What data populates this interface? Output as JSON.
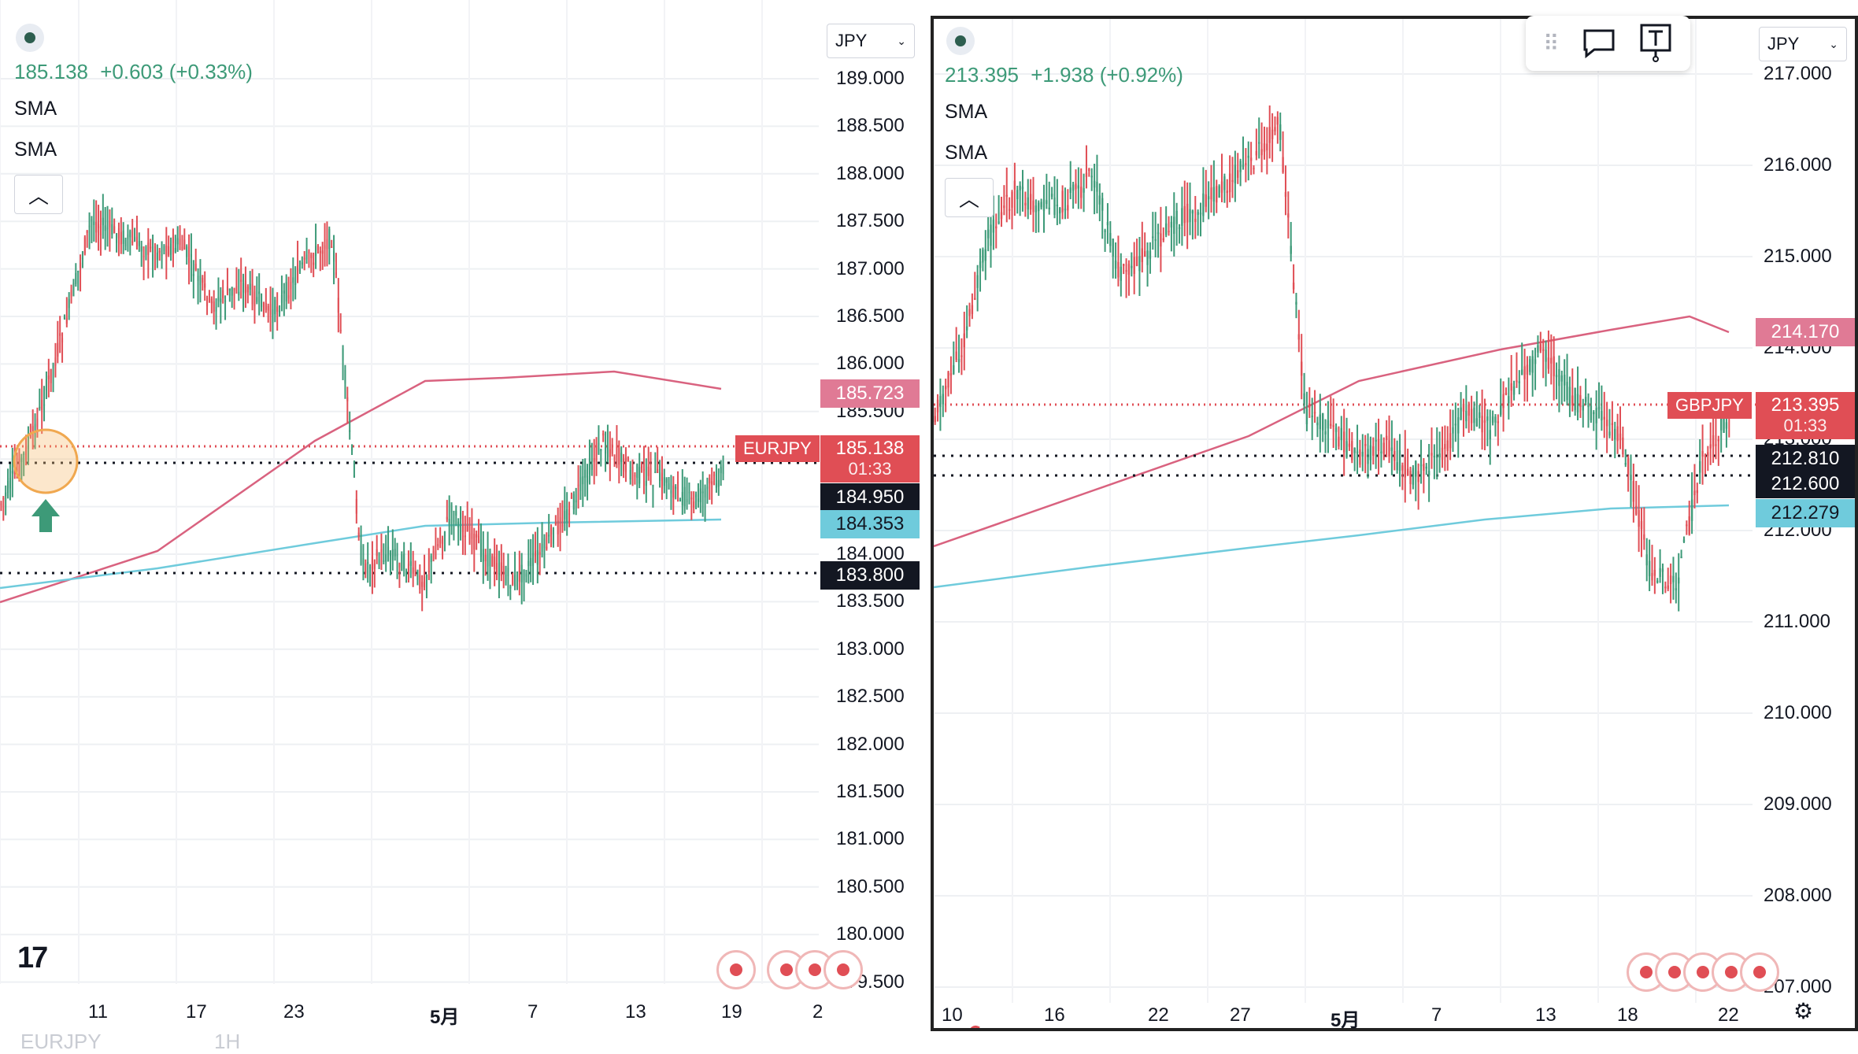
{
  "left": {
    "price": "185.138",
    "change": "+0.603 (+0.33%)",
    "indicators": [
      "SMA",
      "SMA"
    ],
    "currency": "JPY",
    "symbol_tag": "EURJPY",
    "last_price": "185.138",
    "countdown": "01:33",
    "sma_long": "185.723",
    "sma_short": "184.353",
    "level_1": "184.950",
    "level_2": "183.800",
    "y_ticks": [
      "189.000",
      "188.500",
      "188.000",
      "187.500",
      "187.000",
      "186.500",
      "186.000",
      "185.500",
      "185.000",
      "184.500",
      "184.000",
      "183.500",
      "183.000",
      "182.500",
      "182.000",
      "181.500",
      "181.000",
      "180.500",
      "180.000",
      "179.500"
    ],
    "x_ticks": [
      "11",
      "17",
      "23",
      "5月",
      "7",
      "13",
      "19",
      "2"
    ],
    "footer_symbol": "EURJPY",
    "footer_interval": "1H",
    "logo": "17"
  },
  "right": {
    "price": "213.395",
    "change": "+1.938 (+0.92%)",
    "indicators": [
      "SMA",
      "SMA"
    ],
    "currency": "JPY",
    "symbol_tag": "GBPJPY",
    "last_price": "213.395",
    "countdown": "01:33",
    "sma_long": "214.170",
    "sma_short": "212.279",
    "level_1": "212.810",
    "level_2": "212.600",
    "y_ticks": [
      "217.000",
      "216.000",
      "215.000",
      "214.000",
      "213.000",
      "212.000",
      "211.000",
      "210.000",
      "209.000",
      "208.000",
      "207.000"
    ],
    "x_ticks": [
      "10",
      "16",
      "22",
      "27",
      "5月",
      "7",
      "13",
      "18",
      "22"
    ]
  },
  "colors": {
    "up": "#3d9a78",
    "down": "#e04e55",
    "sma_long": "#d9627f",
    "sma_short": "#6fcbdc"
  },
  "chart_data": [
    {
      "type": "line",
      "title": "EURJPY",
      "x": [
        "11",
        "17",
        "23",
        "5月",
        "7",
        "13",
        "19"
      ],
      "series": [
        {
          "values": [
            185.0,
            187.5,
            186.8,
            186.8,
            183.4,
            185.5,
            185.138
          ]
        }
      ],
      "ylim": [
        179.5,
        189.0
      ]
    },
    {
      "type": "line",
      "title": "GBPJPY",
      "x": [
        "10",
        "16",
        "22",
        "27",
        "5月",
        "7",
        "13",
        "18"
      ],
      "series": [
        {
          "values": [
            213.2,
            215.6,
            215.2,
            215.6,
            213.6,
            212.8,
            214.3,
            213.395
          ]
        }
      ],
      "ylim": [
        207.0,
        217.0
      ]
    }
  ]
}
